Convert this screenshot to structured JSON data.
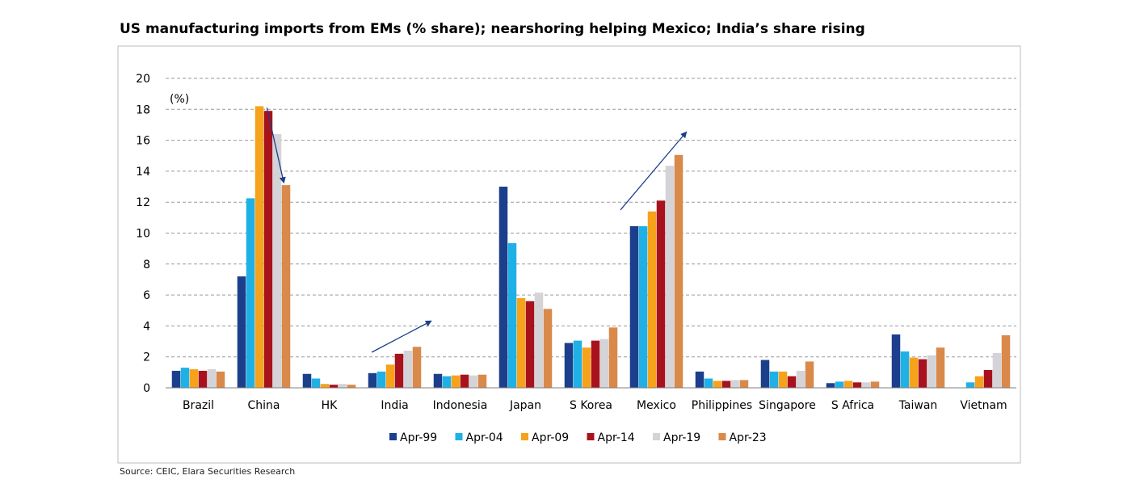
{
  "title": "US manufacturing imports from EMs (% share); nearshoring helping Mexico; India’s share rising",
  "source": "Source: CEIC, Elara Securities Research",
  "chart_data": {
    "type": "bar",
    "title": "US manufacturing imports from EMs (% share); nearshoring helping Mexico; India’s share rising",
    "ylabel": "(%)",
    "xlabel": "",
    "ylim": [
      0,
      20
    ],
    "yticks": [
      0,
      2,
      4,
      6,
      8,
      10,
      12,
      14,
      16,
      18,
      20
    ],
    "grid": true,
    "legend": "bottom",
    "categories": [
      "Brazil",
      "China",
      "HK",
      "India",
      "Indonesia",
      "Japan",
      "S Korea",
      "Mexico",
      "Philippines",
      "Singapore",
      "S Africa",
      "Taiwan",
      "Vietnam"
    ],
    "series": [
      {
        "name": "Apr-99",
        "color": "#1B3F8B",
        "values": [
          1.1,
          7.2,
          0.9,
          0.95,
          0.9,
          13.0,
          2.9,
          10.45,
          1.05,
          1.8,
          0.3,
          3.45,
          0.0
        ]
      },
      {
        "name": "Apr-04",
        "color": "#1FB1E6",
        "values": [
          1.3,
          12.25,
          0.6,
          1.05,
          0.75,
          9.35,
          3.05,
          10.45,
          0.6,
          1.05,
          0.4,
          2.35,
          0.35
        ]
      },
      {
        "name": "Apr-09",
        "color": "#F7A21B",
        "values": [
          1.2,
          18.2,
          0.25,
          1.5,
          0.8,
          5.8,
          2.6,
          11.4,
          0.45,
          1.05,
          0.45,
          1.95,
          0.75
        ]
      },
      {
        "name": "Apr-14",
        "color": "#A8121D",
        "values": [
          1.1,
          17.9,
          0.2,
          2.2,
          0.85,
          5.6,
          3.05,
          12.1,
          0.45,
          0.75,
          0.35,
          1.85,
          1.15
        ]
      },
      {
        "name": "Apr-19",
        "color": "#D3D3D8",
        "values": [
          1.2,
          16.4,
          0.25,
          2.4,
          0.8,
          6.15,
          3.15,
          14.35,
          0.5,
          1.1,
          0.35,
          2.1,
          2.25
        ]
      },
      {
        "name": "Apr-23",
        "color": "#D9894A",
        "values": [
          1.05,
          13.1,
          0.2,
          2.65,
          0.85,
          5.1,
          3.9,
          15.05,
          0.5,
          1.7,
          0.4,
          2.6,
          3.4
        ]
      }
    ],
    "annotations": [
      {
        "type": "arrow",
        "from": [
          "China",
          18.1
        ],
        "to": [
          "China",
          13.3
        ]
      },
      {
        "type": "arrow",
        "from": [
          "India",
          2.3
        ],
        "to": [
          "India",
          4.3
        ]
      },
      {
        "type": "arrow",
        "from": [
          "Mexico",
          11.5
        ],
        "to": [
          "Mexico",
          16.5
        ]
      }
    ],
    "colors": {
      "grid": "#9A9A9A",
      "frame": "#BEBEBE",
      "arrow": "#1B3F8B"
    }
  }
}
